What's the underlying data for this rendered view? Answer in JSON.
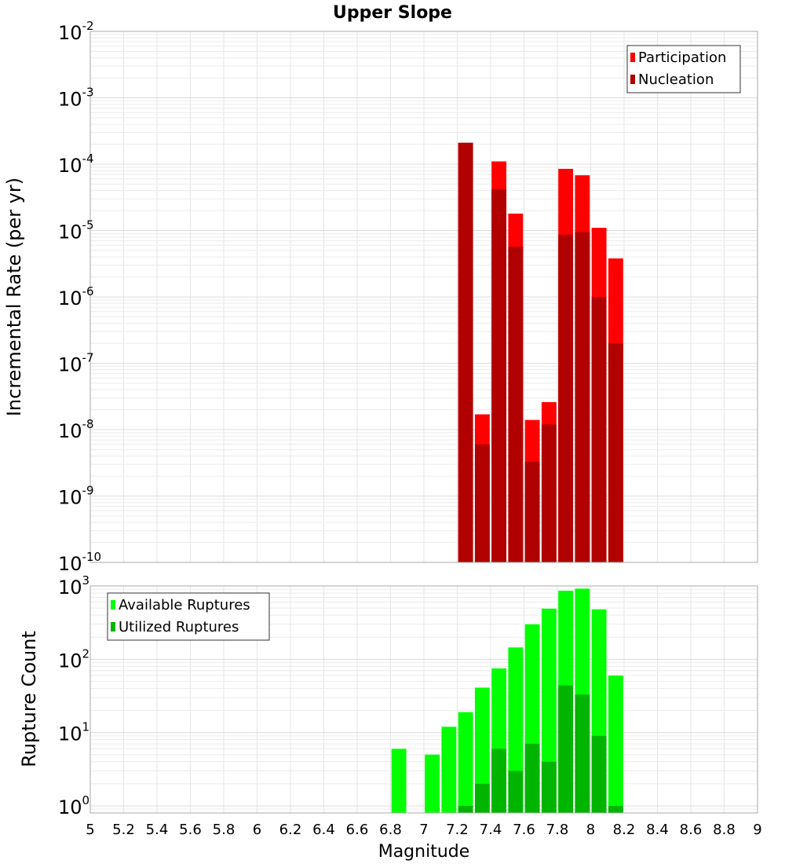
{
  "chart_data": [
    {
      "type": "bar",
      "title": "Upper Slope",
      "xlabel": "",
      "ylabel": "Incremental Rate (per yr)",
      "y_scale": "log",
      "ylim": [
        1e-10,
        0.01
      ],
      "xlim": [
        5,
        9
      ],
      "bar_width": 0.1,
      "grid": true,
      "legend_position": "top-right",
      "series": [
        {
          "name": "Participation",
          "color": "#ff0000",
          "x": [
            7.25,
            7.35,
            7.45,
            7.55,
            7.65,
            7.75,
            7.85,
            7.95,
            8.05,
            8.15
          ],
          "values": [
            0.00021,
            1.7e-08,
            0.00011,
            1.8e-05,
            1.4e-08,
            2.6e-08,
            8.5e-05,
            6.8e-05,
            1.1e-05,
            3.8e-06
          ]
        },
        {
          "name": "Nucleation",
          "color": "#b00000",
          "x": [
            7.25,
            7.35,
            7.45,
            7.55,
            7.65,
            7.75,
            7.85,
            7.95,
            8.05,
            8.15
          ],
          "values": [
            0.00021,
            6e-09,
            4.2e-05,
            5.7e-06,
            3.3e-09,
            1.2e-08,
            8.7e-06,
            9.5e-06,
            1e-06,
            2e-07
          ]
        }
      ]
    },
    {
      "type": "bar",
      "title": "",
      "xlabel": "Magnitude",
      "ylabel": "Rupture Count",
      "y_scale": "log",
      "ylim": [
        0.8,
        1000
      ],
      "xlim": [
        5,
        9
      ],
      "bar_width": 0.1,
      "grid": true,
      "legend_position": "top-left",
      "series": [
        {
          "name": "Available Ruptures",
          "color": "#00ff00",
          "x": [
            6.85,
            7.05,
            7.15,
            7.25,
            7.35,
            7.45,
            7.55,
            7.65,
            7.75,
            7.85,
            7.95,
            8.05,
            8.15
          ],
          "values": [
            6,
            5,
            12,
            19,
            41,
            75,
            145,
            300,
            490,
            860,
            920,
            480,
            60
          ]
        },
        {
          "name": "Utilized Ruptures",
          "color": "#00b400",
          "x": [
            7.25,
            7.35,
            7.45,
            7.55,
            7.65,
            7.75,
            7.85,
            7.95,
            8.05,
            8.15
          ],
          "values": [
            1,
            2,
            6,
            3,
            7,
            4,
            44,
            33,
            9,
            1
          ]
        }
      ]
    }
  ],
  "x_ticks": [
    "5",
    "5.2",
    "5.4",
    "5.6",
    "5.8",
    "6",
    "6.2",
    "6.4",
    "6.6",
    "6.8",
    "7",
    "7.2",
    "7.4",
    "7.6",
    "7.8",
    "8",
    "8.2",
    "8.4",
    "8.6",
    "8.8",
    "9"
  ],
  "top_y_ticks": [
    {
      "base": "10",
      "exp": "-2"
    },
    {
      "base": "10",
      "exp": "-3"
    },
    {
      "base": "10",
      "exp": "-4"
    },
    {
      "base": "10",
      "exp": "-5"
    },
    {
      "base": "10",
      "exp": "-6"
    },
    {
      "base": "10",
      "exp": "-7"
    },
    {
      "base": "10",
      "exp": "-8"
    },
    {
      "base": "10",
      "exp": "-9"
    },
    {
      "base": "10",
      "exp": "-10"
    }
  ],
  "bottom_y_ticks": [
    {
      "base": "10",
      "exp": "3"
    },
    {
      "base": "10",
      "exp": "2"
    },
    {
      "base": "10",
      "exp": "1"
    },
    {
      "base": "10",
      "exp": "0"
    }
  ]
}
